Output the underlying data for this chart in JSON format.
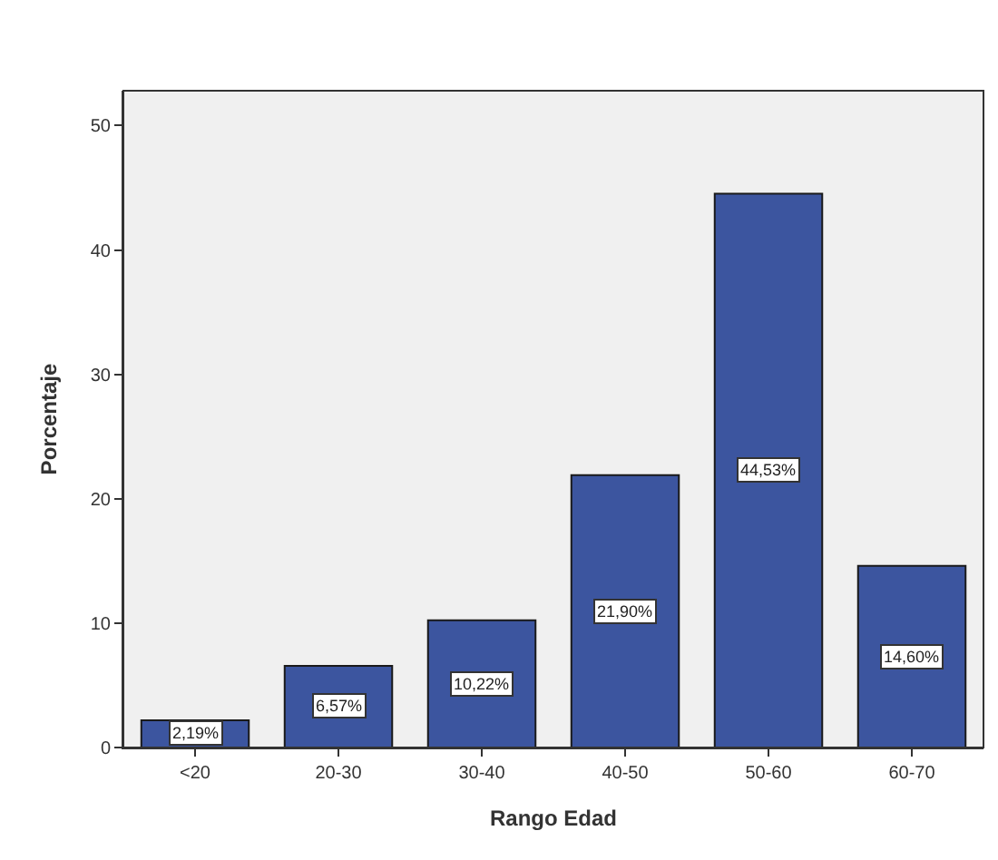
{
  "chart_data": {
    "type": "bar",
    "xlabel": "Rango Edad",
    "ylabel": "Porcentaje",
    "categories": [
      "<20",
      "20-30",
      "30-40",
      "40-50",
      "50-60",
      "60-70"
    ],
    "values": [
      2.19,
      6.57,
      10.22,
      21.9,
      44.53,
      14.6
    ],
    "value_labels": [
      "2,19%",
      "6,57%",
      "10,22%",
      "21,90%",
      "44,53%",
      "14,60%"
    ],
    "color": "#3c559f",
    "ylim": [
      0,
      52.8
    ],
    "yticks": [
      0,
      10,
      20,
      30,
      40,
      50
    ],
    "grid": false
  }
}
